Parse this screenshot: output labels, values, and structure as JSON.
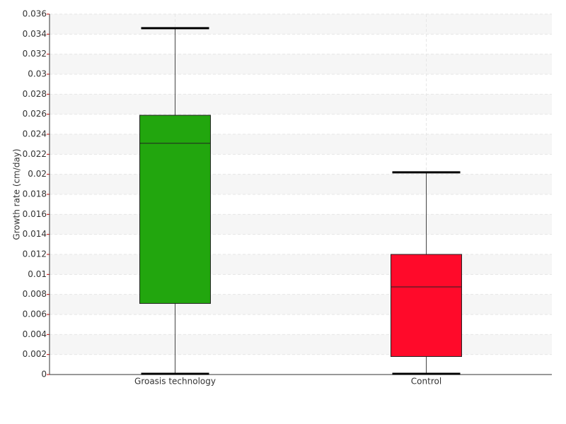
{
  "chart_data": {
    "type": "box",
    "y_label": "Growth rate (cm/day)",
    "categories": [
      "Groasis technology",
      "Control"
    ],
    "colors": [
      "#22a60e",
      "#ff0a2a"
    ],
    "boxes": [
      {
        "min": 0,
        "q1": 0.0071,
        "median": 0.0231,
        "q3": 0.0259,
        "max": 0.0346
      },
      {
        "min": 0,
        "q1": 0.0018,
        "median": 0.00875,
        "q3": 0.012,
        "max": 0.0202
      }
    ],
    "ylim": [
      0,
      0.036
    ],
    "yticks": [
      0,
      0.002,
      0.004,
      0.006,
      0.008,
      0.01,
      0.012,
      0.014,
      0.016,
      0.018,
      0.02,
      0.022,
      0.024,
      0.026,
      0.028,
      0.03,
      0.032,
      0.034,
      0.036
    ],
    "grid": true
  }
}
